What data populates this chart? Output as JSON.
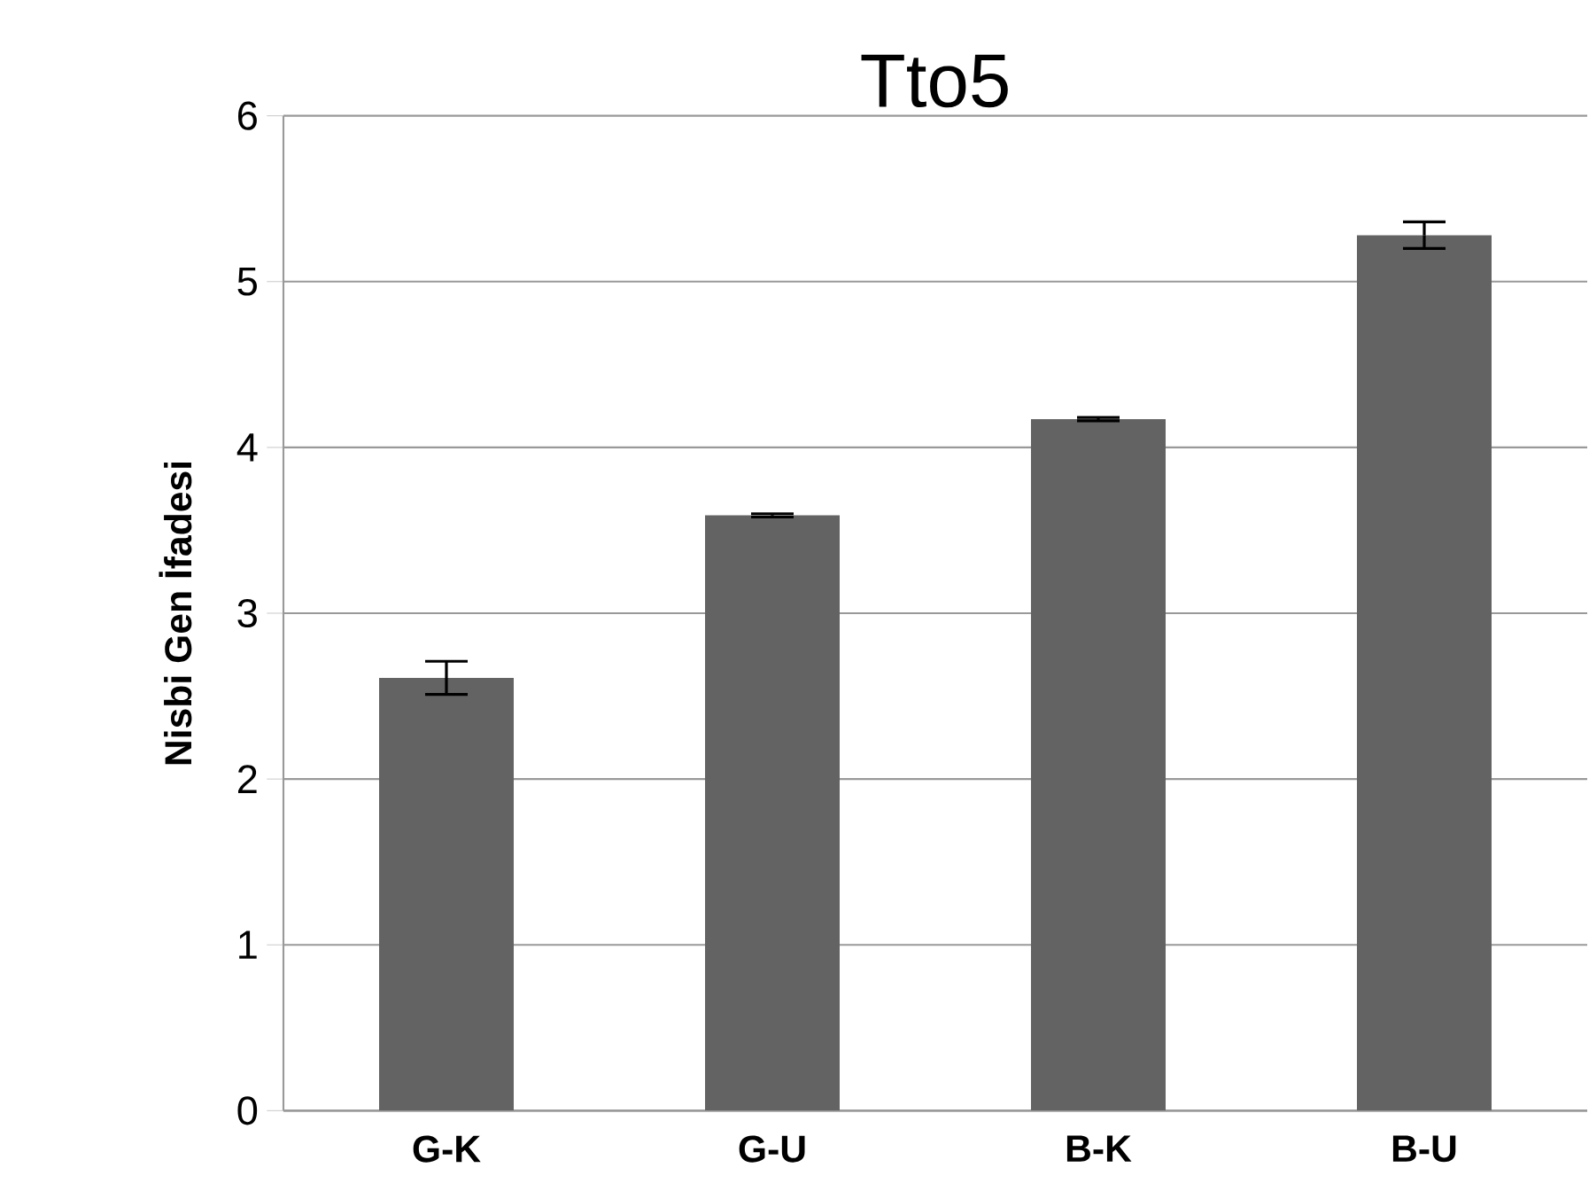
{
  "chart_data": {
    "type": "bar",
    "title": "Tto5",
    "ylabel": "Nisbi Gen İfadesi",
    "categories": [
      "G-K",
      "G-U",
      "B-K",
      "B-U"
    ],
    "values": [
      2.61,
      3.59,
      4.17,
      5.28
    ],
    "errors": [
      0.1,
      0.01,
      0.01,
      0.08
    ],
    "color": "#636363",
    "ylim": [
      0,
      6
    ],
    "yticks": [
      0,
      1,
      2,
      3,
      4,
      5,
      6
    ],
    "grid": "y"
  }
}
